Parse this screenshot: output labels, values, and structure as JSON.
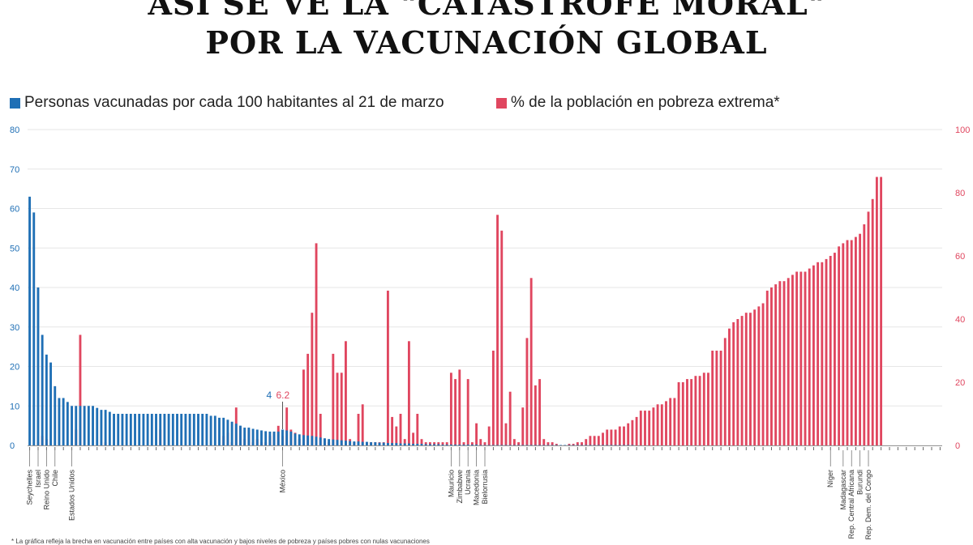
{
  "title_line1": "ASÍ SE VE LA \"CATÁSTROFE MORAL\"",
  "title_line2": "POR LA VACUNACIÓN GLOBAL",
  "legend": {
    "vaccinated": "Personas vacunadas por cada 100 habitantes  al 21 de marzo",
    "poverty": "% de la población en pobreza extrema*"
  },
  "colors": {
    "vaccinated": "#1f6fb5",
    "poverty": "#e0465f",
    "grid": "#e6e6e6"
  },
  "annotation": {
    "vaccinated": "4",
    "poverty": "6.2"
  },
  "footnote": "* La gráfica refleja la brecha en vacunación entre países con alta vacunación y bajos niveles de pobreza y países pobres con nulas vacunaciones",
  "chart_data": {
    "type": "bar",
    "y_left": {
      "range": [
        0,
        80
      ],
      "ticks": [
        0,
        10,
        20,
        30,
        40,
        50,
        60,
        70,
        80
      ]
    },
    "y_right": {
      "range": [
        0,
        100
      ],
      "ticks": [
        0,
        20,
        40,
        60,
        80,
        100
      ]
    },
    "grid": true,
    "legend_position": "top",
    "country_labels": [
      {
        "index": 0,
        "label": "Seychelles"
      },
      {
        "index": 2,
        "label": "Israel"
      },
      {
        "index": 4,
        "label": "Reino Unido"
      },
      {
        "index": 6,
        "label": "Chile"
      },
      {
        "index": 10,
        "label": "Estados Unidos"
      },
      {
        "index": 60,
        "label": "México"
      },
      {
        "index": 100,
        "label": "Mauricio"
      },
      {
        "index": 102,
        "label": "Zimbabwe"
      },
      {
        "index": 104,
        "label": "Ucrania"
      },
      {
        "index": 106,
        "label": "Macedonia"
      },
      {
        "index": 108,
        "label": "Bielorrusia"
      },
      {
        "index": 190,
        "label": "Níger"
      },
      {
        "index": 193,
        "label": "Madagascar"
      },
      {
        "index": 195,
        "label": "Rep. Central Africana"
      },
      {
        "index": 197,
        "label": "Burundi"
      },
      {
        "index": 199,
        "label": "Rep. Dem. del Congo"
      }
    ],
    "series": [
      {
        "name": "Personas vacunadas por cada 100 habitantes  al 21 de marzo",
        "axis": "left",
        "values": [
          63,
          59,
          40,
          28,
          23,
          21,
          15,
          12,
          12,
          11,
          10,
          10,
          10,
          10,
          10,
          10,
          9.5,
          9,
          9,
          8.5,
          8,
          8,
          8,
          8,
          8,
          8,
          8,
          8,
          8,
          8,
          8,
          8,
          8,
          8,
          8,
          8,
          8,
          8,
          8,
          8,
          8,
          8,
          8,
          7.5,
          7.5,
          7,
          7,
          6.5,
          6,
          5.5,
          5,
          4.5,
          4.5,
          4.2,
          4,
          3.8,
          3.6,
          3.5,
          3.5,
          3.5,
          4,
          3.8,
          3.5,
          3,
          2.8,
          2.6,
          2.5,
          2.4,
          2.2,
          2,
          1.8,
          1.6,
          1.5,
          1.4,
          1.3,
          1.2,
          1.1,
          1,
          1,
          0.9,
          0.9,
          0.8,
          0.8,
          0.7,
          0.7,
          0.6,
          0.6,
          0.6,
          0.5,
          0.5,
          0.5,
          0.4,
          0.4,
          0.4,
          0.3,
          0.3,
          0.3,
          0.3,
          0.2,
          0.2,
          0.2,
          0.2,
          0.2,
          0.2,
          0.2,
          0.2,
          0.2,
          0.1,
          0.1,
          0.1,
          0.1,
          0.1,
          0.1,
          0.1,
          0.1,
          0.1,
          0.1,
          0.1,
          0.1,
          0.1,
          0.1,
          0.1,
          0.1,
          0.1,
          0.1,
          0.1,
          0.1,
          0.1,
          0.1,
          0.1,
          0.1,
          0.1,
          0.1,
          0.1,
          0.1,
          0.1,
          0.1,
          0.1,
          0.1,
          0.1,
          0.1,
          0.1,
          0.1,
          0.1,
          0,
          0,
          0,
          0,
          0,
          0,
          0,
          0,
          0,
          0,
          0,
          0,
          0,
          0,
          0,
          0,
          0,
          0,
          0,
          0,
          0,
          0,
          0,
          0,
          0,
          0,
          0,
          0,
          0,
          0,
          0,
          0,
          0,
          0,
          0,
          0,
          0,
          0,
          0,
          0,
          0,
          0,
          0,
          0,
          0,
          0,
          0,
          0,
          0,
          0,
          0,
          0,
          0,
          0,
          0,
          0,
          0,
          0,
          0,
          0,
          0,
          0,
          0,
          0,
          0,
          0,
          0,
          0,
          0,
          0,
          0,
          0,
          0
        ]
      },
      {
        "name": "% de la población en pobreza extrema*",
        "axis": "right",
        "values": [
          0,
          0,
          1,
          3,
          2,
          0,
          0,
          0,
          0,
          0,
          0,
          5,
          35,
          0,
          0,
          0,
          0,
          0,
          1,
          0,
          0,
          0,
          0,
          0,
          0,
          0,
          0,
          0,
          0,
          0,
          0,
          5,
          0,
          0,
          0,
          0,
          0,
          0,
          0,
          0,
          0,
          0,
          0,
          0,
          0,
          0,
          3,
          4,
          1,
          12,
          6,
          2,
          5,
          1,
          2,
          1,
          1,
          3,
          4,
          6.2,
          3,
          12,
          5,
          4,
          2,
          24,
          29,
          42,
          64,
          10,
          2,
          1,
          29,
          23,
          23,
          33,
          2,
          1,
          10,
          13,
          1,
          1,
          1,
          1,
          1,
          49,
          9,
          6,
          10,
          2,
          33,
          4,
          10,
          2,
          1,
          1,
          1,
          1,
          1,
          1,
          23,
          21,
          24,
          1,
          21,
          1,
          7,
          2,
          1,
          6,
          30,
          73,
          68,
          7,
          17,
          2,
          1,
          12,
          34,
          53,
          19,
          21,
          2,
          1,
          1,
          0.5,
          0,
          0,
          0.5,
          0.5,
          1,
          1,
          2,
          3,
          3,
          3,
          4,
          5,
          5,
          5,
          6,
          6,
          7,
          8,
          9,
          11,
          11,
          11,
          12,
          13,
          13,
          14,
          15,
          15,
          20,
          20,
          21,
          21,
          22,
          22,
          23,
          23,
          30,
          30,
          30,
          34,
          37,
          39,
          40,
          41,
          42,
          42,
          43,
          44,
          45,
          49,
          50,
          51,
          52,
          52,
          53,
          54,
          55,
          55,
          55,
          56,
          57,
          58,
          58,
          59,
          60,
          61,
          63,
          64,
          65,
          65,
          66,
          67,
          70,
          74,
          78,
          85,
          85
        ]
      }
    ]
  }
}
